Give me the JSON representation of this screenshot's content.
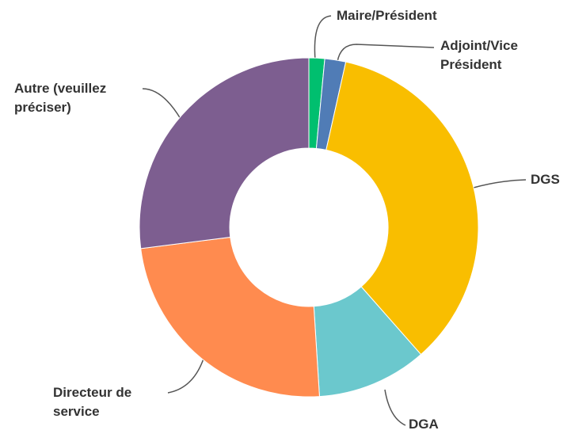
{
  "chart_data": {
    "type": "pie",
    "donut": true,
    "categories": [
      "Maire/Président",
      "Adjoint/Vice Président",
      "DGS",
      "DGA",
      "Directeur de service",
      "Autre (veuillez préciser)"
    ],
    "values": [
      1.5,
      2,
      35,
      10.5,
      24,
      27
    ],
    "colors": [
      "#00bf6f",
      "#507cb6",
      "#f9be00",
      "#6bc8cd",
      "#ff8b4f",
      "#7d5e90"
    ]
  }
}
